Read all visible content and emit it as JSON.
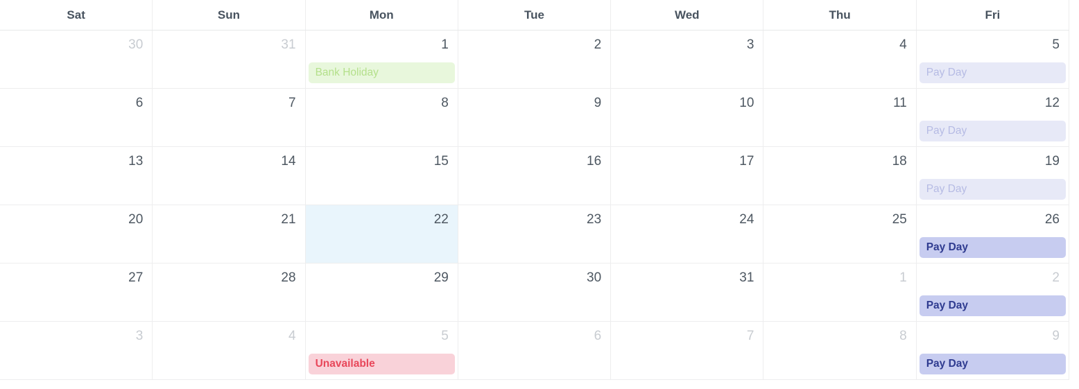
{
  "colors": {
    "header_text": "#48535f",
    "date_text": "#4d5761",
    "date_text_muted": "#c8ccd1",
    "grid_line": "#ededee",
    "today_cell_bg": "#e9f5fc",
    "event_holiday_faded_bg": "#e8f7dc",
    "event_holiday_faded_text": "#b4e08b",
    "event_payday_faded_bg": "#e7e9f7",
    "event_payday_faded_text": "#b6bbe4",
    "event_payday_bg": "#c7ccf0",
    "event_payday_text": "#2f3b90",
    "event_unavailable_bg": "#f9d2d9",
    "event_unavailable_text": "#e8475a"
  },
  "calendar": {
    "day_headers": [
      "Sat",
      "Sun",
      "Mon",
      "Tue",
      "Wed",
      "Thu",
      "Fri"
    ],
    "weeks": [
      {
        "days": [
          {
            "date": "30",
            "muted": true
          },
          {
            "date": "31",
            "muted": true
          },
          {
            "date": "1",
            "event": {
              "label": "Bank Holiday",
              "type": "holiday-faded"
            }
          },
          {
            "date": "2"
          },
          {
            "date": "3"
          },
          {
            "date": "4"
          },
          {
            "date": "5",
            "event": {
              "label": "Pay Day",
              "type": "payday-faded"
            }
          }
        ]
      },
      {
        "days": [
          {
            "date": "6"
          },
          {
            "date": "7"
          },
          {
            "date": "8"
          },
          {
            "date": "9"
          },
          {
            "date": "10"
          },
          {
            "date": "11"
          },
          {
            "date": "12",
            "event": {
              "label": "Pay Day",
              "type": "payday-faded"
            }
          }
        ]
      },
      {
        "days": [
          {
            "date": "13"
          },
          {
            "date": "14"
          },
          {
            "date": "15"
          },
          {
            "date": "16"
          },
          {
            "date": "17"
          },
          {
            "date": "18"
          },
          {
            "date": "19",
            "event": {
              "label": "Pay Day",
              "type": "payday-faded"
            }
          }
        ]
      },
      {
        "days": [
          {
            "date": "20"
          },
          {
            "date": "21"
          },
          {
            "date": "22",
            "today": true
          },
          {
            "date": "23"
          },
          {
            "date": "24"
          },
          {
            "date": "25"
          },
          {
            "date": "26",
            "event": {
              "label": "Pay Day",
              "type": "payday"
            }
          }
        ]
      },
      {
        "days": [
          {
            "date": "27"
          },
          {
            "date": "28"
          },
          {
            "date": "29"
          },
          {
            "date": "30"
          },
          {
            "date": "31"
          },
          {
            "date": "1",
            "muted": true
          },
          {
            "date": "2",
            "muted": true,
            "event": {
              "label": "Pay Day",
              "type": "payday"
            }
          }
        ]
      },
      {
        "days": [
          {
            "date": "3",
            "muted": true
          },
          {
            "date": "4",
            "muted": true
          },
          {
            "date": "5",
            "muted": true,
            "event": {
              "label": "Unavailable",
              "type": "unavailable"
            }
          },
          {
            "date": "6",
            "muted": true
          },
          {
            "date": "7",
            "muted": true
          },
          {
            "date": "8",
            "muted": true
          },
          {
            "date": "9",
            "muted": true,
            "event": {
              "label": "Pay Day",
              "type": "payday"
            }
          }
        ]
      }
    ]
  }
}
